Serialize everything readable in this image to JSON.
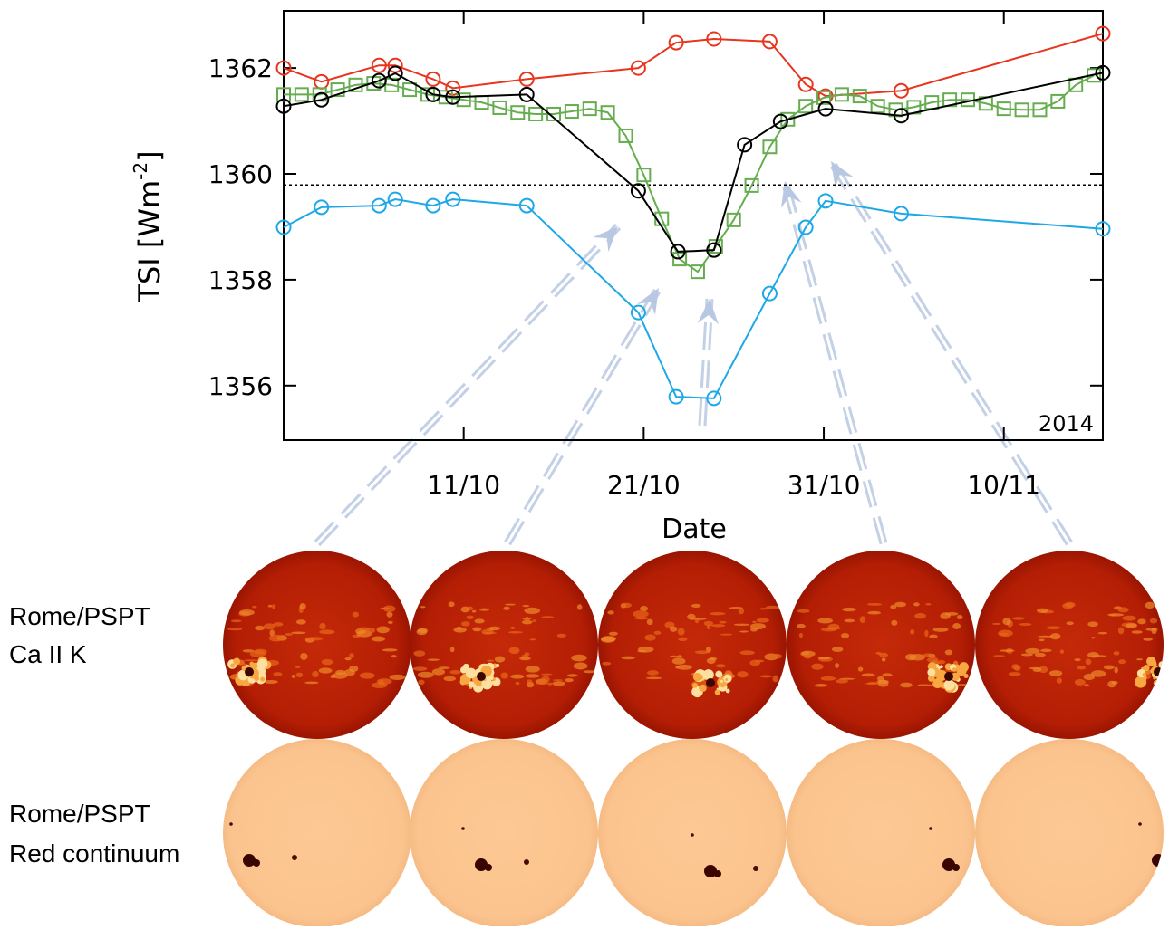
{
  "chart_data": {
    "type": "line",
    "xlabel": "Date",
    "ylabel": {
      "text": "TSI [Wm",
      "superscript": "-2",
      "suffix": "]"
    },
    "annotation": "2014",
    "xlim": [
      1,
      46.5
    ],
    "ylim": [
      1354.97,
      1363.08
    ],
    "xticks": [
      {
        "value": 11,
        "label": "11/10"
      },
      {
        "value": 21,
        "label": "21/10"
      },
      {
        "value": 31,
        "label": "31/10"
      },
      {
        "value": 41,
        "label": "10/11"
      }
    ],
    "yticks": [
      1356,
      1358,
      1360,
      1362
    ],
    "reference_line": 1359.79,
    "series": [
      {
        "color": "#e8351e",
        "marker": "circle",
        "x": [
          1,
          3.1,
          6.3,
          7.2,
          9.3,
          10.4,
          14.5,
          20.7,
          22.8,
          24.9,
          28.0,
          30.0,
          31.1,
          35.3,
          46.5
        ],
        "values": [
          1362.0,
          1361.74,
          1362.05,
          1362.05,
          1361.79,
          1361.62,
          1361.79,
          1362.0,
          1362.48,
          1362.55,
          1362.5,
          1361.69,
          1361.47,
          1361.57,
          1362.65
        ]
      },
      {
        "color": "#65ad4f",
        "marker": "square",
        "x": [
          1,
          2,
          3,
          4,
          5,
          6,
          7,
          8,
          9,
          10,
          11,
          12,
          13,
          14,
          15,
          16,
          17,
          18,
          19,
          20,
          21,
          22,
          23,
          24,
          25,
          26,
          27,
          28,
          29,
          30,
          31,
          32,
          33,
          34,
          35,
          36,
          37,
          38,
          39,
          40,
          41,
          42,
          43,
          44,
          45,
          46
        ],
        "values": [
          1361.5,
          1361.5,
          1361.5,
          1361.59,
          1361.68,
          1361.71,
          1361.68,
          1361.59,
          1361.5,
          1361.45,
          1361.4,
          1361.35,
          1361.25,
          1361.16,
          1361.13,
          1361.13,
          1361.18,
          1361.23,
          1361.16,
          1360.72,
          1359.98,
          1359.15,
          1358.39,
          1358.15,
          1358.63,
          1359.13,
          1359.78,
          1360.51,
          1361.03,
          1361.28,
          1361.44,
          1361.5,
          1361.47,
          1361.28,
          1361.21,
          1361.26,
          1361.35,
          1361.4,
          1361.4,
          1361.33,
          1361.23,
          1361.21,
          1361.21,
          1361.37,
          1361.68,
          1361.86
        ]
      },
      {
        "color": "#000000",
        "marker": "circle",
        "x": [
          1,
          3.1,
          6.3,
          7.2,
          9.3,
          10.4,
          14.5,
          20.7,
          22.9,
          24.9,
          26.6,
          28.6,
          31.1,
          35.3,
          46.5
        ],
        "values": [
          1361.28,
          1361.4,
          1361.76,
          1361.9,
          1361.5,
          1361.45,
          1361.5,
          1359.68,
          1358.53,
          1358.56,
          1360.55,
          1360.99,
          1361.23,
          1361.1,
          1361.91
        ]
      },
      {
        "color": "#1ea8e8",
        "marker": "circle",
        "x": [
          1,
          3.1,
          6.3,
          7.2,
          9.3,
          10.4,
          14.5,
          20.7,
          22.8,
          24.9,
          28.0,
          30.0,
          31.1,
          35.3,
          46.5
        ],
        "values": [
          1358.99,
          1359.37,
          1359.4,
          1359.52,
          1359.4,
          1359.52,
          1359.4,
          1357.38,
          1355.79,
          1355.76,
          1357.74,
          1358.99,
          1359.49,
          1359.25,
          1358.96
        ]
      }
    ]
  },
  "image_rows": [
    {
      "label": [
        "Rome/PSPT",
        "Ca II K"
      ]
    },
    {
      "label": [
        "Rome/PSPT",
        "Red continuum"
      ]
    }
  ]
}
